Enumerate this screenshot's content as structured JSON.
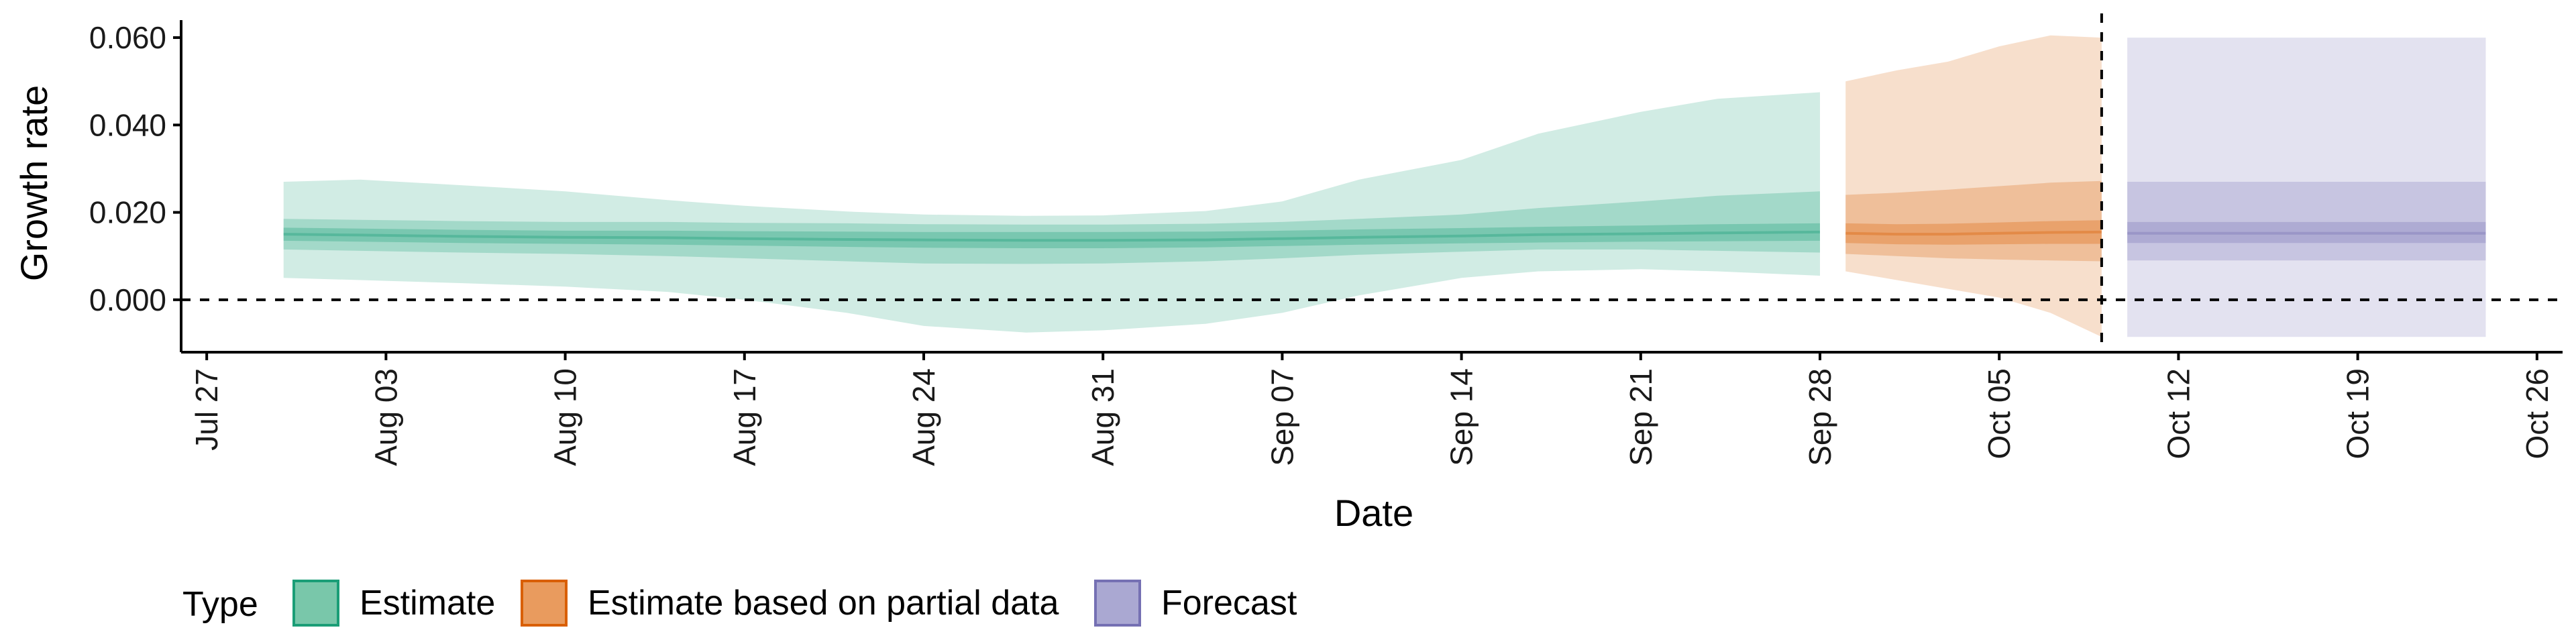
{
  "chart_data": {
    "type": "area",
    "xlabel": "Date",
    "ylabel": "Growth rate",
    "ylim": [
      -0.012,
      0.064
    ],
    "xlim": [
      "2020-07-26",
      "2020-10-27"
    ],
    "x_ticks": [
      "Jul 27",
      "Aug 03",
      "Aug 10",
      "Aug 17",
      "Aug 24",
      "Aug 31",
      "Sep 07",
      "Sep 14",
      "Sep 21",
      "Sep 28",
      "Oct 05",
      "Oct 12",
      "Oct 19",
      "Oct 26"
    ],
    "y_ticks": [
      "0.000",
      "0.020",
      "0.040",
      "0.060"
    ],
    "reference_lines": {
      "horizontal_y": 0.0,
      "vertical_date": "2020-10-09"
    },
    "grid": false,
    "legend": {
      "title": "Type",
      "position": "bottom-left",
      "items": [
        {
          "label": "Estimate",
          "fill": "#79c7aa",
          "border": "#1b9e77"
        },
        {
          "label": "Estimate based on partial data",
          "fill": "#e99b5e",
          "border": "#d95f02"
        },
        {
          "label": "Forecast",
          "fill": "#aaa8d2",
          "border": "#7570b3"
        }
      ]
    },
    "series": [
      {
        "name": "Estimate",
        "color": "#1b9e77",
        "x": [
          "2020-07-30",
          "2020-08-02",
          "2020-08-06",
          "2020-08-10",
          "2020-08-14",
          "2020-08-17",
          "2020-08-21",
          "2020-08-24",
          "2020-08-28",
          "2020-08-31",
          "2020-09-04",
          "2020-09-07",
          "2020-09-10",
          "2020-09-14",
          "2020-09-17",
          "2020-09-21",
          "2020-09-24",
          "2020-09-28"
        ],
        "median": [
          0.015,
          0.0148,
          0.0145,
          0.0143,
          0.0142,
          0.014,
          0.0138,
          0.0137,
          0.0136,
          0.0136,
          0.0137,
          0.014,
          0.0143,
          0.0146,
          0.0149,
          0.0151,
          0.0153,
          0.0155
        ],
        "lower_20": [
          0.0135,
          0.0133,
          0.013,
          0.0128,
          0.0126,
          0.0124,
          0.0121,
          0.0119,
          0.0118,
          0.0118,
          0.012,
          0.0123,
          0.0126,
          0.0129,
          0.0131,
          0.0133,
          0.0134,
          0.0135
        ],
        "upper_20": [
          0.0165,
          0.0163,
          0.016,
          0.0158,
          0.0158,
          0.0157,
          0.0156,
          0.0155,
          0.0155,
          0.0155,
          0.0156,
          0.0158,
          0.0161,
          0.0164,
          0.0167,
          0.017,
          0.0173,
          0.0175
        ],
        "lower_50": [
          0.0115,
          0.0112,
          0.0108,
          0.0105,
          0.01,
          0.0095,
          0.0088,
          0.0083,
          0.0082,
          0.0083,
          0.0088,
          0.0095,
          0.0103,
          0.011,
          0.0115,
          0.0115,
          0.0112,
          0.0108
        ],
        "upper_50": [
          0.0185,
          0.0183,
          0.018,
          0.0178,
          0.0178,
          0.0176,
          0.0175,
          0.0173,
          0.0172,
          0.0172,
          0.0174,
          0.0178,
          0.0185,
          0.0195,
          0.021,
          0.0225,
          0.0238,
          0.0248
        ],
        "lower_90": [
          0.005,
          0.0045,
          0.0038,
          0.003,
          0.0018,
          0.0,
          -0.003,
          -0.006,
          -0.0075,
          -0.007,
          -0.0055,
          -0.003,
          0.001,
          0.005,
          0.0065,
          0.007,
          0.0065,
          0.0055
        ],
        "upper_90": [
          0.027,
          0.0275,
          0.0262,
          0.0248,
          0.0228,
          0.0215,
          0.0202,
          0.0195,
          0.0192,
          0.0193,
          0.0203,
          0.0225,
          0.0275,
          0.032,
          0.038,
          0.043,
          0.046,
          0.0475
        ]
      },
      {
        "name": "Estimate based on partial data",
        "color": "#d95f02",
        "x": [
          "2020-09-29",
          "2020-10-01",
          "2020-10-03",
          "2020-10-05",
          "2020-10-07",
          "2020-10-09"
        ],
        "median": [
          0.0152,
          0.015,
          0.015,
          0.0152,
          0.0154,
          0.0155
        ],
        "lower_20": [
          0.013,
          0.0127,
          0.0126,
          0.0127,
          0.0128,
          0.0128
        ],
        "upper_20": [
          0.0175,
          0.0173,
          0.0174,
          0.0177,
          0.018,
          0.0182
        ],
        "lower_50": [
          0.0105,
          0.01,
          0.0095,
          0.0092,
          0.009,
          0.0088
        ],
        "upper_50": [
          0.024,
          0.0245,
          0.0252,
          0.026,
          0.0268,
          0.0272
        ],
        "lower_90": [
          0.0065,
          0.0045,
          0.0025,
          0.0005,
          -0.003,
          -0.0085
        ],
        "upper_90": [
          0.05,
          0.0525,
          0.0545,
          0.058,
          0.0605,
          0.06
        ]
      },
      {
        "name": "Forecast",
        "color": "#7570b3",
        "x": [
          "2020-10-10",
          "2020-10-24"
        ],
        "median": [
          0.0152,
          0.0152
        ],
        "lower_20": [
          0.013,
          0.013
        ],
        "upper_20": [
          0.0178,
          0.0178
        ],
        "lower_50": [
          0.009,
          0.009
        ],
        "upper_50": [
          0.027,
          0.027
        ],
        "lower_90": [
          -0.0085,
          -0.0085
        ],
        "upper_90": [
          0.06,
          0.06
        ]
      }
    ]
  }
}
